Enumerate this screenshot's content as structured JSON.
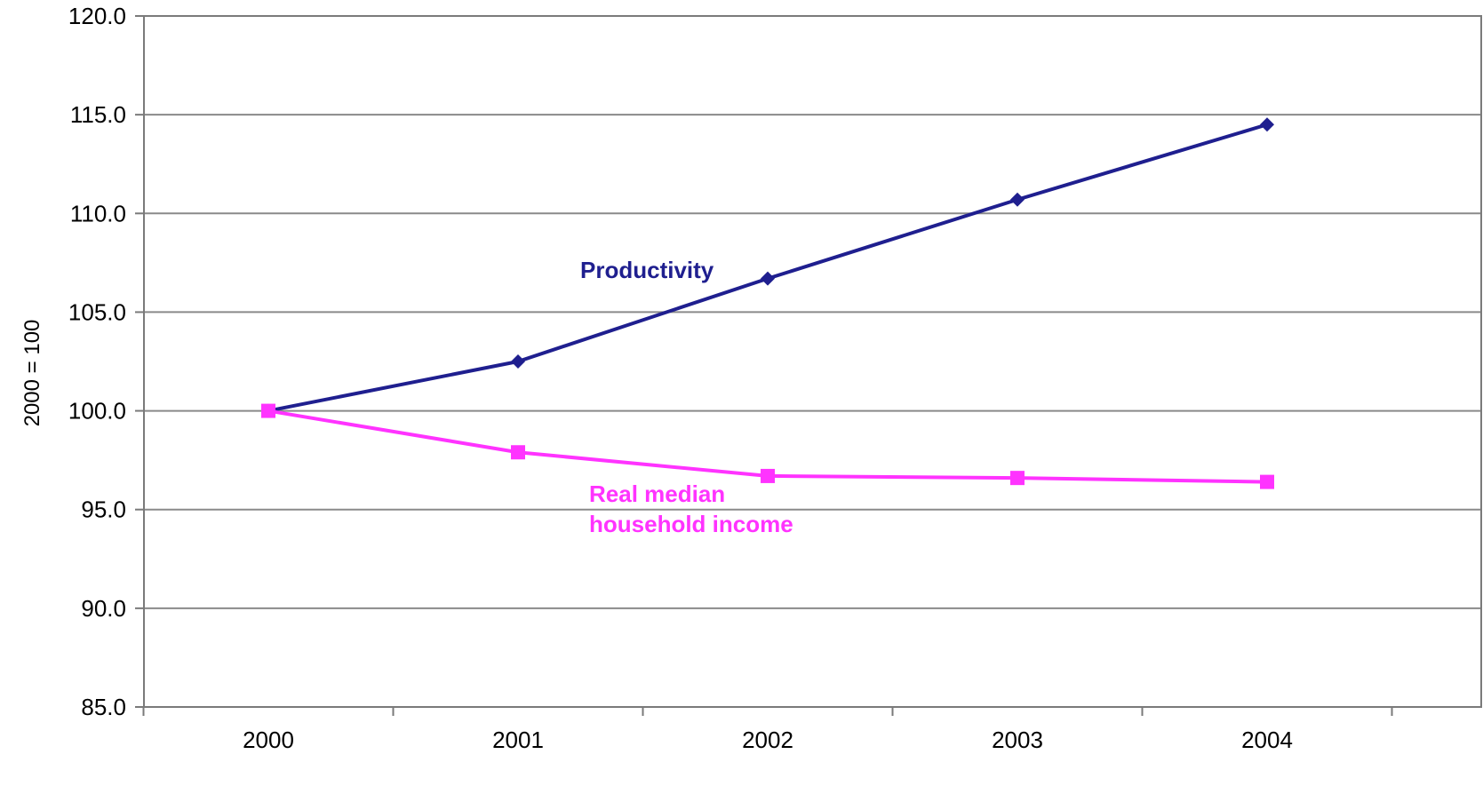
{
  "chart_data": {
    "type": "line",
    "title": "",
    "xlabel": "",
    "ylabel": "2000 = 100",
    "categories": [
      "2000",
      "2001",
      "2002",
      "2003",
      "2004"
    ],
    "ylim": [
      85.0,
      120.0
    ],
    "yticks": [
      "85.0",
      "90.0",
      "95.0",
      "100.0",
      "105.0",
      "110.0",
      "115.0",
      "120.0"
    ],
    "grid": true,
    "legend": "none (series labelled inline)",
    "series": [
      {
        "name": "Productivity",
        "label_lines": [
          "Productivity"
        ],
        "color": "#1f1f8f",
        "marker": "diamond",
        "values": [
          100.0,
          102.5,
          106.7,
          110.7,
          114.5
        ]
      },
      {
        "name": "Real median household income",
        "label_lines": [
          "Real median",
          "household income"
        ],
        "color": "#ff33ff",
        "marker": "square",
        "values": [
          100.0,
          97.9,
          96.7,
          96.6,
          96.4
        ]
      }
    ]
  }
}
